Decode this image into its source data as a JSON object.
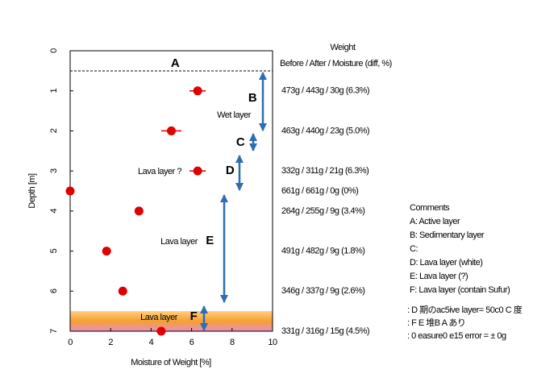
{
  "chart_data": {
    "type": "scatter",
    "x_label": "Moisture of Weight [%]",
    "y_label": "Depth [m]",
    "x": [
      6.3,
      5.0,
      6.3,
      0,
      3.4,
      1.8,
      2.6,
      4.5
    ],
    "values": [
      1,
      2,
      3,
      3.5,
      4,
      5,
      6,
      7
    ],
    "errors": [
      0.4,
      0.5,
      0.4,
      0,
      0.2,
      0,
      0,
      0.3
    ],
    "color": "#e00000",
    "xlim": [
      0,
      10
    ],
    "xticks": [
      0,
      2,
      4,
      6,
      8,
      10
    ],
    "ylim": [
      7,
      0
    ],
    "yticks": [
      0,
      1,
      2,
      3,
      4,
      5,
      6,
      7
    ],
    "annotations": [
      "A",
      "B",
      "Wet layer",
      "C",
      "D",
      "Lava layer ?",
      "E",
      "Lava layer",
      "F",
      "Lava layer"
    ],
    "weight_header": "Weight",
    "weight_subheader": "Before / After / Moisture (diff, %)",
    "weight_rows": [
      "473g / 443g / 30g (6.3%)",
      "463g / 440g / 23g (5.0%)",
      "332g / 311g / 21g (6.3%)",
      "661g / 661g / 0g (0%)",
      "264g / 255g / 9g (3.4%)",
      "491g / 482g / 9g (1.8%)",
      "346g / 337g / 9g (2.6%)",
      "331g / 316g / 15g (4.5%)"
    ],
    "comments_title": "Comments",
    "comments": [
      "A: Active layer",
      "B: Sedimentary layer",
      "C:",
      "D: Lava layer (white)",
      "E: Lava layer (?)",
      "F: Lava layer (contain Sufur)"
    ],
    "notes": [
      ": D 期のac5ive layer= 50c0 C 度",
      ": F E 堆B A あり",
      ": 0 easure0 e15 error = ± 0g"
    ]
  }
}
